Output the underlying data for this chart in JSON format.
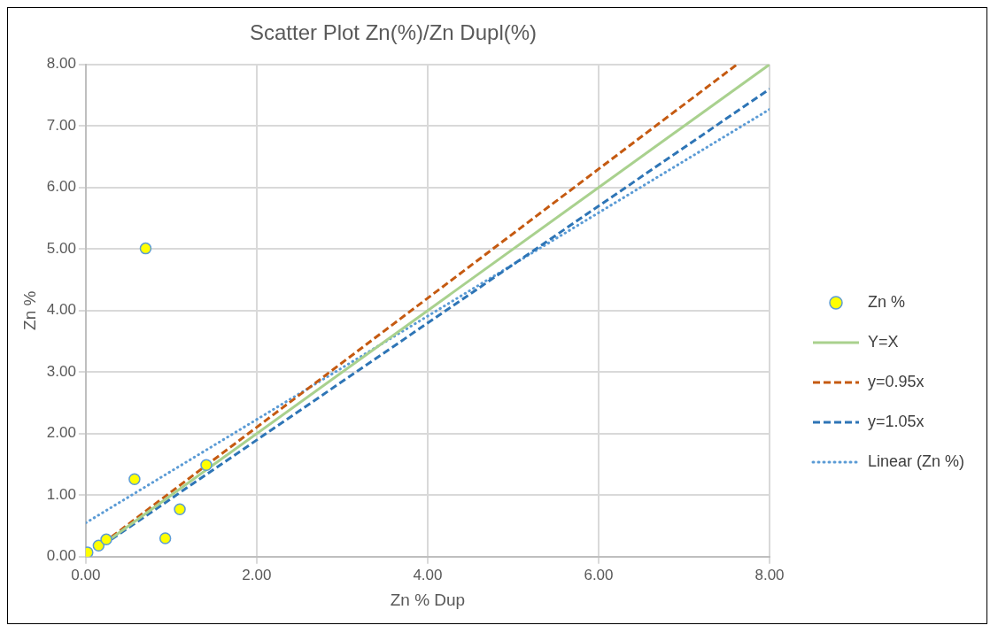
{
  "chart_data": {
    "type": "scatter",
    "title": "Scatter Plot Zn(%)/Zn Dupl(%)",
    "xlabel": "Zn % Dup",
    "ylabel": "Zn %",
    "series": [
      {
        "name": "Zn %",
        "marker": "circle",
        "color": "#ffff00",
        "x": [
          0.02,
          0.15,
          0.24,
          0.57,
          0.7,
          0.93,
          1.1,
          1.41
        ],
        "values": [
          0.07,
          0.18,
          0.28,
          1.26,
          5.01,
          0.3,
          0.77,
          1.49
        ]
      },
      {
        "name": "Y=X",
        "type": "line",
        "marker": "none",
        "color": "#a9d18e",
        "line_style": "solid",
        "x": [
          0.3,
          8
        ],
        "values": [
          0.3,
          8
        ]
      },
      {
        "name": "y=0.95x",
        "type": "line",
        "marker": "none",
        "color": "#c55a11",
        "line_style": "dashed",
        "x": [
          0.3,
          7.62
        ],
        "values": [
          0.32,
          8
        ]
      },
      {
        "name": "y=1.05x",
        "type": "line",
        "marker": "none",
        "color": "#2e75b6",
        "line_style": "dashed",
        "x": [
          0.3,
          8
        ],
        "values": [
          0.28,
          7.6
        ]
      },
      {
        "name": "Linear (Zn %)",
        "type": "line",
        "marker": "none",
        "color": "#5b9bd5",
        "line_style": "dotted",
        "x": [
          0,
          8
        ],
        "values": [
          0.55,
          7.27
        ]
      }
    ],
    "xlim": [
      0,
      8
    ],
    "xticks": [
      {
        "value": 0,
        "label": "0.00"
      },
      {
        "value": 2,
        "label": "2.00"
      },
      {
        "value": 4,
        "label": "4.00"
      },
      {
        "value": 6,
        "label": "6.00"
      },
      {
        "value": 8,
        "label": "8.00"
      }
    ],
    "ylim": [
      0,
      8
    ],
    "yticks": [
      {
        "value": 0,
        "label": "0.00"
      },
      {
        "value": 1,
        "label": "1.00"
      },
      {
        "value": 2,
        "label": "2.00"
      },
      {
        "value": 3,
        "label": "3.00"
      },
      {
        "value": 4,
        "label": "4.00"
      },
      {
        "value": 5,
        "label": "5.00"
      },
      {
        "value": 6,
        "label": "6.00"
      },
      {
        "value": 7,
        "label": "7.00"
      },
      {
        "value": 8,
        "label": "8.00"
      }
    ],
    "grid": true,
    "legend": "right"
  }
}
